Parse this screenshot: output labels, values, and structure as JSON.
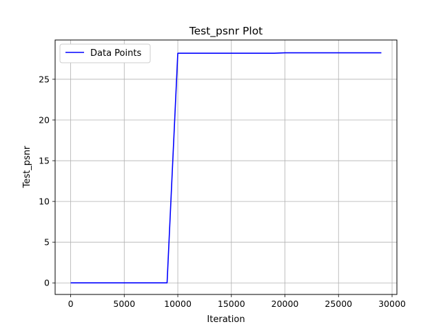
{
  "chart_data": {
    "type": "line",
    "title": "Test_psnr Plot",
    "xlabel": "Iteration",
    "ylabel": "Test_psnr",
    "xlim": [
      -1450,
      30450
    ],
    "ylim": [
      -1.42,
      29.82
    ],
    "xticks": [
      0,
      5000,
      10000,
      15000,
      20000,
      25000,
      30000
    ],
    "yticks": [
      0,
      5,
      10,
      15,
      20,
      25
    ],
    "grid": true,
    "legend_position": "top-left",
    "series": [
      {
        "name": "Data Points",
        "color": "#0000ff",
        "x": [
          0,
          1000,
          2000,
          3000,
          4000,
          5000,
          6000,
          7000,
          8000,
          9000,
          10000,
          11000,
          12000,
          13000,
          14000,
          15000,
          16000,
          17000,
          18000,
          19000,
          20000,
          21000,
          22000,
          23000,
          24000,
          25000,
          26000,
          27000,
          28000,
          29000
        ],
        "y": [
          0,
          0,
          0,
          0,
          0,
          0,
          0,
          0,
          0,
          0,
          28.2,
          28.2,
          28.2,
          28.2,
          28.2,
          28.2,
          28.2,
          28.2,
          28.2,
          28.2,
          28.25,
          28.25,
          28.25,
          28.25,
          28.25,
          28.25,
          28.25,
          28.25,
          28.25,
          28.25
        ]
      }
    ]
  }
}
